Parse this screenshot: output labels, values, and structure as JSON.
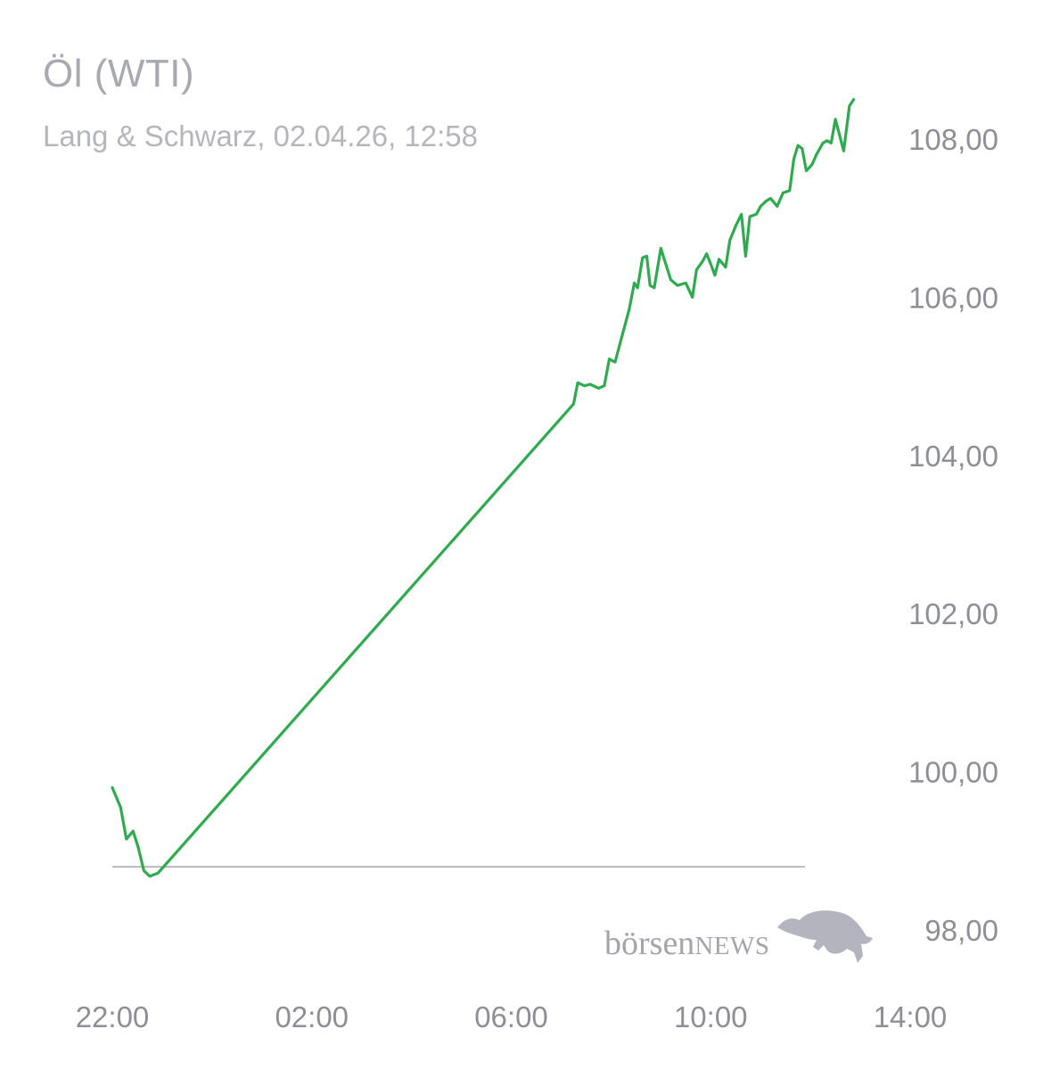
{
  "header": {
    "title": "Öl (WTI)",
    "subtitle": "Lang & Schwarz, 02.04.26, 12:58"
  },
  "logo": {
    "word_lower": "börsen",
    "word_upper": "NEWS",
    "icon": "bull-icon"
  },
  "colors": {
    "line": "#2faa4f",
    "baseline": "#8a8a8a",
    "text": "#8e8e96"
  },
  "chart_data": {
    "type": "line",
    "title": "Öl (WTI)",
    "subtitle": "Lang & Schwarz, 02.04.26, 12:58",
    "xlim": [
      "22:00",
      "14:00"
    ],
    "ylim": [
      97.5,
      108.8
    ],
    "y_ticks": [
      "98,00",
      "100,00",
      "102,00",
      "104,00",
      "106,00",
      "108,00"
    ],
    "x_ticks": [
      "22:00",
      "02:00",
      "06:00",
      "10:00",
      "14:00"
    ],
    "y_axis_position": "right",
    "grid": false,
    "reference_line": 98.8,
    "series": [
      {
        "points": [
          [
            "22:00",
            99.8
          ],
          [
            "22:10",
            99.55
          ],
          [
            "22:17",
            99.15
          ],
          [
            "22:25",
            99.25
          ],
          [
            "22:31",
            99.05
          ],
          [
            "22:38",
            98.75
          ],
          [
            "22:45",
            98.68
          ],
          [
            "22:55",
            98.72
          ],
          [
            "07:15",
            104.65
          ],
          [
            "07:20",
            104.92
          ],
          [
            "07:28",
            104.88
          ],
          [
            "07:35",
            104.9
          ],
          [
            "07:45",
            104.85
          ],
          [
            "07:52",
            104.88
          ],
          [
            "07:58",
            105.22
          ],
          [
            "08:05",
            105.18
          ],
          [
            "08:13",
            105.5
          ],
          [
            "08:22",
            105.85
          ],
          [
            "08:28",
            106.18
          ],
          [
            "08:32",
            106.12
          ],
          [
            "08:38",
            106.5
          ],
          [
            "08:43",
            106.52
          ],
          [
            "08:47",
            106.15
          ],
          [
            "08:52",
            106.12
          ],
          [
            "09:00",
            106.62
          ],
          [
            "09:05",
            106.45
          ],
          [
            "09:12",
            106.22
          ],
          [
            "09:20",
            106.15
          ],
          [
            "09:30",
            106.18
          ],
          [
            "09:38",
            106.0
          ],
          [
            "09:43",
            106.35
          ],
          [
            "09:50",
            106.45
          ],
          [
            "09:55",
            106.55
          ],
          [
            "10:00",
            106.42
          ],
          [
            "10:05",
            106.28
          ],
          [
            "10:10",
            106.48
          ],
          [
            "10:18",
            106.38
          ],
          [
            "10:23",
            106.72
          ],
          [
            "10:30",
            106.9
          ],
          [
            "10:37",
            107.05
          ],
          [
            "10:42",
            106.52
          ],
          [
            "10:47",
            107.02
          ],
          [
            "10:55",
            107.05
          ],
          [
            "11:00",
            107.15
          ],
          [
            "11:07",
            107.22
          ],
          [
            "11:12",
            107.25
          ],
          [
            "11:20",
            107.15
          ],
          [
            "11:27",
            107.32
          ],
          [
            "11:35",
            107.35
          ],
          [
            "11:40",
            107.75
          ],
          [
            "11:45",
            107.92
          ],
          [
            "11:50",
            107.88
          ],
          [
            "11:55",
            107.6
          ],
          [
            "12:02",
            107.68
          ],
          [
            "12:07",
            107.8
          ],
          [
            "12:15",
            107.95
          ],
          [
            "12:20",
            107.98
          ],
          [
            "12:25",
            107.95
          ],
          [
            "12:30",
            108.25
          ],
          [
            "12:35",
            108.05
          ],
          [
            "12:40",
            107.85
          ],
          [
            "12:47",
            108.42
          ],
          [
            "12:52",
            108.5
          ]
        ]
      }
    ]
  }
}
